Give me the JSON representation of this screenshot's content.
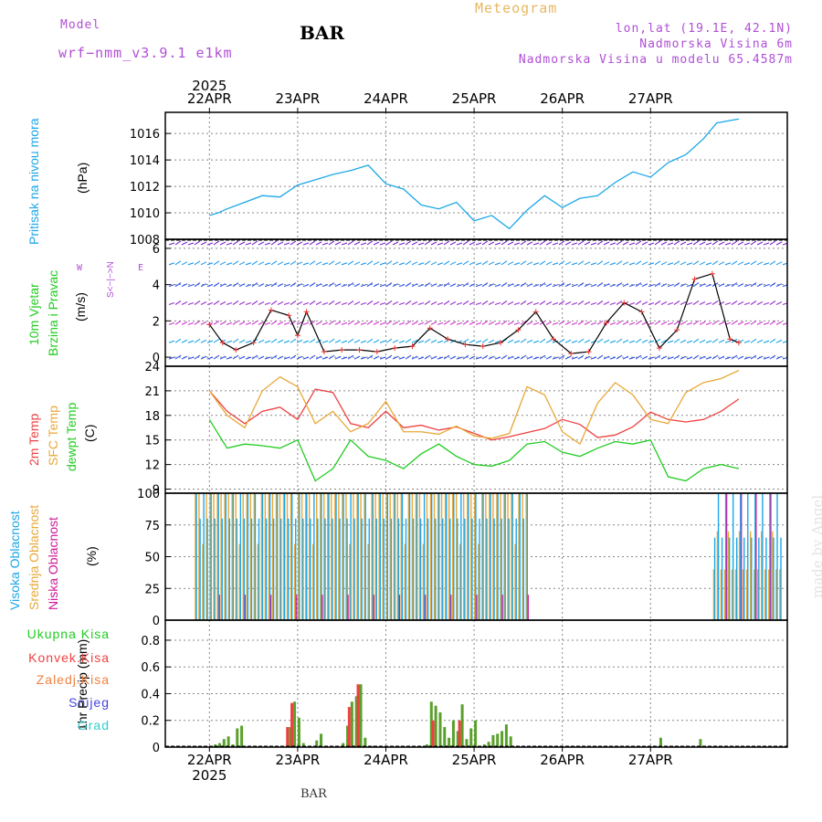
{
  "header": {
    "model_label": "Model",
    "model_name": "wrf−nmm_v3.9.1  e1km",
    "station": "BAR",
    "meteogram_title": "Meteogram",
    "lonlat": "lon,lat (19.1E, 42.1N)",
    "altitude": "Nadmorska Visina 6m",
    "model_altitude": "Nadmorska Visina u modelu 65.4587m",
    "footer_station": "BAR",
    "watermark": "made by Angel"
  },
  "colors": {
    "pressure": "#1ca7e8",
    "temp_2m": "#ee4040",
    "sfc_temp": "#e8a838",
    "dewpt": "#22cc22",
    "cloud_high": "#1ca7e8",
    "cloud_mid": "#e8a838",
    "cloud_low": "#cc1a99",
    "precip_total": "#5aa02c",
    "precip_conv": "#ee4040",
    "precip_frozen": "#f08040",
    "precip_snow": "#4444dd",
    "precip_hail": "#33cccc",
    "purple_text": "#b04fd6",
    "grid": "#888888"
  },
  "time_axis": {
    "year": "2025",
    "dates": [
      "22APR",
      "23APR",
      "24APR",
      "25APR",
      "26APR",
      "27APR"
    ]
  },
  "panels": {
    "pressure": {
      "label": "Pritisak na nivou mora",
      "unit": "(hPa)"
    },
    "wind": {
      "label1": "10m Vjetar",
      "label2": "Brzina i Pravac",
      "unit": "(m/s)",
      "compass_w": "W",
      "compass_e": "E",
      "compass_ns": "S<−|−>N"
    },
    "temp": {
      "label1": "2m Temp",
      "label2": "SFC Temp",
      "label3": "dewpt Temp",
      "unit": "(C)"
    },
    "cloud": {
      "label1": "Visoka Oblacnost",
      "label2": "Srednja Oblacnost",
      "label3": "Niska Oblacnost",
      "unit": "(%)"
    },
    "precip": {
      "label": "1hr Precip (mm)",
      "legend": [
        "Ukupna Kisa",
        "Konvek.Kisa",
        "Zaledj.Kisa",
        "Snijeg",
        "Grad"
      ]
    }
  },
  "chart_data": [
    {
      "type": "line",
      "title": "",
      "ylabel": "Pritisak na nivou mora (hPa)",
      "ylim": [
        1008,
        1017.6
      ],
      "yticks": [
        1008,
        1010,
        1012,
        1014,
        1016
      ],
      "x_days": [
        0,
        0.1,
        0.2,
        0.4,
        0.6,
        0.8,
        1.0,
        1.2,
        1.4,
        1.6,
        1.8,
        2.0,
        2.2,
        2.4,
        2.6,
        2.8,
        3.0,
        3.2,
        3.4,
        3.6,
        3.8,
        4.0,
        4.2,
        4.4,
        4.6,
        4.8,
        5.0,
        5.2,
        5.4,
        5.6,
        5.75,
        6.0
      ],
      "series": [
        {
          "values": [
            1009.8,
            1010.0,
            1010.3,
            1010.8,
            1011.3,
            1011.2,
            1012.1,
            1012.5,
            1012.9,
            1013.2,
            1013.6,
            1012.2,
            1011.8,
            1010.6,
            1010.3,
            1010.8,
            1009.4,
            1009.8,
            1008.8,
            1010.2,
            1011.3,
            1010.4,
            1011.1,
            1011.3,
            1012.3,
            1013.1,
            1012.7,
            1013.8,
            1014.4,
            1015.6,
            1016.8,
            1017.1
          ]
        }
      ]
    },
    {
      "type": "line",
      "title": "",
      "ylabel": "10m Vjetar Brzina i Pravac (m/s)",
      "ylim": [
        -0.5,
        6.5
      ],
      "yticks": [
        0,
        2,
        4,
        6
      ],
      "x_days": [
        0,
        0.15,
        0.3,
        0.5,
        0.7,
        0.9,
        1.0,
        1.1,
        1.3,
        1.5,
        1.7,
        1.9,
        2.1,
        2.3,
        2.5,
        2.7,
        2.9,
        3.1,
        3.3,
        3.5,
        3.7,
        3.9,
        4.1,
        4.3,
        4.5,
        4.7,
        4.9,
        5.1,
        5.3,
        5.5,
        5.7,
        5.9,
        6.0
      ],
      "series": [
        {
          "values": [
            1.8,
            0.8,
            0.4,
            0.8,
            2.6,
            2.3,
            1.2,
            2.5,
            0.3,
            0.4,
            0.4,
            0.3,
            0.5,
            0.6,
            1.6,
            1.0,
            0.7,
            0.6,
            0.8,
            1.5,
            2.5,
            1.0,
            0.2,
            0.3,
            1.9,
            3.0,
            2.5,
            0.5,
            1.5,
            4.3,
            4.6,
            1.0,
            0.8
          ]
        }
      ]
    },
    {
      "type": "line",
      "title": "",
      "ylabel": "Temp (C)",
      "ylim": [
        8.5,
        24
      ],
      "yticks": [
        9,
        12,
        15,
        18,
        21,
        24
      ],
      "x_days": [
        0,
        0.2,
        0.4,
        0.6,
        0.8,
        1.0,
        1.2,
        1.4,
        1.6,
        1.8,
        2.0,
        2.2,
        2.4,
        2.6,
        2.8,
        3.0,
        3.2,
        3.4,
        3.6,
        3.8,
        4.0,
        4.2,
        4.4,
        4.6,
        4.8,
        5.0,
        5.2,
        5.4,
        5.6,
        5.8,
        6.0
      ],
      "series": [
        {
          "name": "2m Temp",
          "values": [
            21.0,
            18.5,
            17.0,
            18.5,
            19.0,
            17.5,
            21.2,
            20.8,
            17.0,
            16.5,
            18.5,
            16.5,
            16.8,
            16.2,
            16.6,
            15.8,
            15.0,
            15.4,
            15.9,
            16.4,
            17.5,
            16.9,
            15.3,
            15.6,
            16.6,
            18.4,
            17.5,
            17.2,
            17.5,
            18.5,
            20.0
          ]
        },
        {
          "name": "SFC Temp",
          "values": [
            21.0,
            18.0,
            16.5,
            21.0,
            22.7,
            21.5,
            17.0,
            18.5,
            16.0,
            17.0,
            19.7,
            16.0,
            16.0,
            15.7,
            16.7,
            15.5,
            15.2,
            15.8,
            21.5,
            20.5,
            16.0,
            14.5,
            19.5,
            22.0,
            20.5,
            17.5,
            17.0,
            20.8,
            22.0,
            22.5,
            23.5
          ]
        },
        {
          "name": "dewpt Temp",
          "values": [
            17.5,
            14.0,
            14.5,
            14.3,
            14.0,
            15.0,
            10.0,
            11.5,
            15.0,
            13.0,
            12.5,
            11.5,
            13.3,
            14.5,
            13.0,
            12.0,
            11.8,
            12.5,
            14.5,
            14.8,
            13.5,
            13.0,
            14.0,
            14.8,
            14.5,
            15.0,
            10.5,
            10.0,
            11.5,
            12.0,
            11.5
          ]
        }
      ]
    },
    {
      "type": "bar",
      "title": "",
      "ylabel": "Oblacnost (%)",
      "ylim": [
        0,
        100
      ],
      "yticks": [
        0,
        25,
        50,
        75,
        100
      ],
      "note": "hourly cloud cover: mostly 100% from 22APR 00h to 25APR 12h, near 0% 25APR 12h to 26APR 18h, intermittent 40-100% on 27APR"
    },
    {
      "type": "bar",
      "title": "",
      "ylabel": "1hr Precip (mm)",
      "ylim": [
        0,
        0.95
      ],
      "yticks": [
        0,
        0.2,
        0.4,
        0.6,
        0.8
      ],
      "x_days": [
        0.05,
        0.1,
        0.15,
        0.2,
        0.25,
        0.3,
        0.35,
        0.9,
        0.95,
        1.0,
        1.05,
        1.2,
        1.25,
        1.5,
        1.55,
        1.6,
        1.65,
        1.7,
        1.75,
        1.8,
        1.85,
        2.45,
        2.5,
        2.55,
        2.6,
        2.65,
        2.7,
        2.75,
        2.8,
        2.85,
        2.9,
        2.95,
        3.0,
        3.1,
        3.15,
        3.2,
        3.25,
        3.3,
        3.35,
        3.4,
        5.1,
        5.55
      ],
      "series": [
        {
          "name": "Ukupna Kisa",
          "values": [
            0.02,
            0.03,
            0.06,
            0.08,
            0.02,
            0.14,
            0.16,
            0.15,
            0.34,
            0.22,
            0.03,
            0.05,
            0.1,
            0.03,
            0.16,
            0.34,
            0.38,
            0.47,
            0.07,
            0.01,
            0.01,
            0.02,
            0.34,
            0.31,
            0.26,
            0.15,
            0.07,
            0.2,
            0.12,
            0.32,
            0.06,
            0.14,
            0.2,
            0.02,
            0.04,
            0.09,
            0.1,
            0.12,
            0.17,
            0.08,
            0.07,
            0.06
          ]
        },
        {
          "name": "Konvek.Kisa",
          "values": [
            0,
            0,
            0,
            0,
            0,
            0,
            0,
            0.15,
            0.33,
            0,
            0,
            0,
            0,
            0,
            0,
            0.3,
            0,
            0.47,
            0,
            0,
            0,
            0,
            0,
            0.2,
            0,
            0,
            0,
            0,
            0,
            0.2,
            0,
            0,
            0,
            0,
            0,
            0,
            0,
            0,
            0,
            0,
            0,
            0
          ]
        }
      ]
    }
  ]
}
